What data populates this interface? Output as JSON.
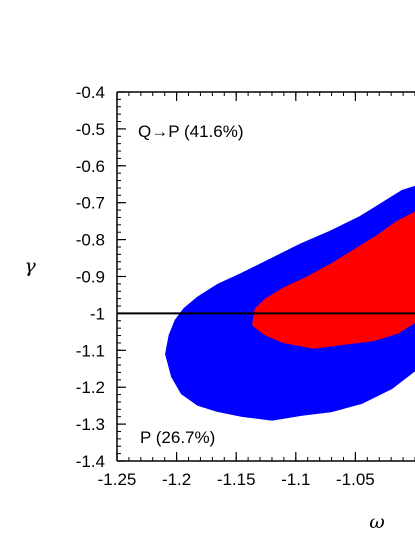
{
  "chart_data": {
    "type": "scatter",
    "xlabel": "ω",
    "ylabel": "γ",
    "xlim": [
      -1.25,
      -1.0
    ],
    "ylim": [
      -1.4,
      -0.4
    ],
    "x_ticks": [
      "-1.25",
      "-1.2",
      "-1.15",
      "-1.1",
      "-1.05"
    ],
    "y_ticks": [
      "-0.4",
      "-0.5",
      "-0.6",
      "-0.7",
      "-0.8",
      "-0.9",
      "-1",
      "-1.1",
      "-1.2",
      "-1.3",
      "-1.4"
    ],
    "reference_line": {
      "y": -1.0
    },
    "annotations": {
      "upper": "Q→P (41.6%)",
      "lower": "P (26.7%)"
    },
    "regions": [
      {
        "color": "#0000ff",
        "outline": [
          [
            -1.208,
            -1.11
          ],
          [
            -1.205,
            -1.06
          ],
          [
            -1.2,
            -1.02
          ],
          [
            -1.193,
            -0.99
          ],
          [
            -1.182,
            -0.96
          ],
          [
            -1.165,
            -0.925
          ],
          [
            -1.145,
            -0.895
          ],
          [
            -1.12,
            -0.855
          ],
          [
            -1.095,
            -0.815
          ],
          [
            -1.07,
            -0.78
          ],
          [
            -1.045,
            -0.74
          ],
          [
            -1.025,
            -0.7
          ],
          [
            -1.01,
            -0.67
          ],
          [
            -1.0,
            -0.66
          ],
          [
            -1.0,
            -1.0
          ],
          [
            -1.0,
            -1.15
          ],
          [
            -1.02,
            -1.2
          ],
          [
            -1.045,
            -1.24
          ],
          [
            -1.07,
            -1.262
          ],
          [
            -1.095,
            -1.272
          ],
          [
            -1.12,
            -1.285
          ],
          [
            -1.145,
            -1.275
          ],
          [
            -1.165,
            -1.262
          ],
          [
            -1.182,
            -1.245
          ],
          [
            -1.195,
            -1.215
          ],
          [
            -1.203,
            -1.17
          ]
        ]
      },
      {
        "color": "#ff0000",
        "outline": [
          [
            -1.135,
            -1.03
          ],
          [
            -1.133,
            -0.99
          ],
          [
            -1.125,
            -0.965
          ],
          [
            -1.11,
            -0.935
          ],
          [
            -1.09,
            -0.905
          ],
          [
            -1.07,
            -0.87
          ],
          [
            -1.05,
            -0.83
          ],
          [
            -1.03,
            -0.79
          ],
          [
            -1.015,
            -0.755
          ],
          [
            -1.0,
            -0.73
          ],
          [
            -1.0,
            -1.02
          ],
          [
            -1.015,
            -1.05
          ],
          [
            -1.035,
            -1.07
          ],
          [
            -1.06,
            -1.08
          ],
          [
            -1.085,
            -1.09
          ],
          [
            -1.11,
            -1.075
          ],
          [
            -1.125,
            -1.055
          ]
        ]
      }
    ]
  }
}
